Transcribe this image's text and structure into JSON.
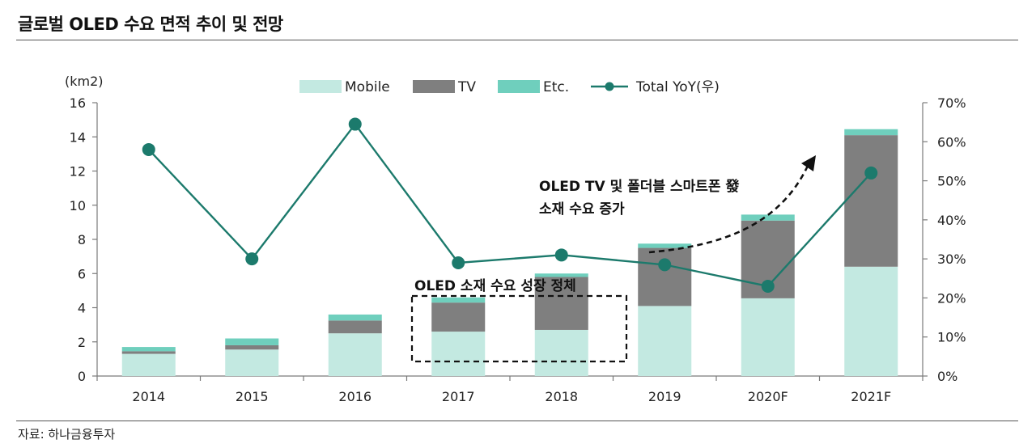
{
  "page": {
    "title": "글로벌 OLED 수요 면적 추이 및 전망",
    "source": "자료: 하나금융투자"
  },
  "colors": {
    "mobile": "#c3e9e1",
    "tv": "#7f7f7f",
    "etc": "#6fcfbd",
    "yoy": "#1c7a6c"
  },
  "chart_data": {
    "type": "bar",
    "stacked": true,
    "categories": [
      "2014",
      "2015",
      "2016",
      "2017",
      "2018",
      "2019",
      "2020F",
      "2021F"
    ],
    "series": [
      {
        "name": "Mobile",
        "values": [
          1.3,
          1.55,
          2.5,
          2.6,
          2.7,
          4.1,
          4.55,
          6.4
        ],
        "axis": "left"
      },
      {
        "name": "TV",
        "values": [
          0.15,
          0.25,
          0.75,
          1.7,
          3.1,
          3.4,
          4.55,
          7.7
        ],
        "axis": "left"
      },
      {
        "name": "Etc.",
        "values": [
          0.25,
          0.4,
          0.35,
          0.3,
          0.2,
          0.25,
          0.35,
          0.35
        ],
        "axis": "left"
      },
      {
        "name": "Total YoY(우)",
        "type": "line",
        "values": [
          58,
          30,
          64.5,
          29,
          31,
          28.5,
          23,
          52
        ],
        "axis": "right"
      }
    ],
    "ylabel": "(km2)",
    "ylim": [
      0,
      16
    ],
    "yticks": [
      "0",
      "2",
      "4",
      "6",
      "8",
      "10",
      "12",
      "14",
      "16"
    ],
    "y2lim": [
      0,
      70
    ],
    "y2ticks": [
      "0%",
      "10%",
      "20%",
      "30%",
      "40%",
      "50%",
      "60%",
      "70%"
    ],
    "legend_position": "top-center",
    "grid": false,
    "annotations": [
      {
        "text": "OLED 소재 수요 성장 정체",
        "style": "dashed-box"
      },
      {
        "text": [
          "OLED  TV 및 폴더블 스마트폰 發",
          "소재 수요 증가"
        ],
        "style": "dashed-arrow"
      }
    ]
  }
}
